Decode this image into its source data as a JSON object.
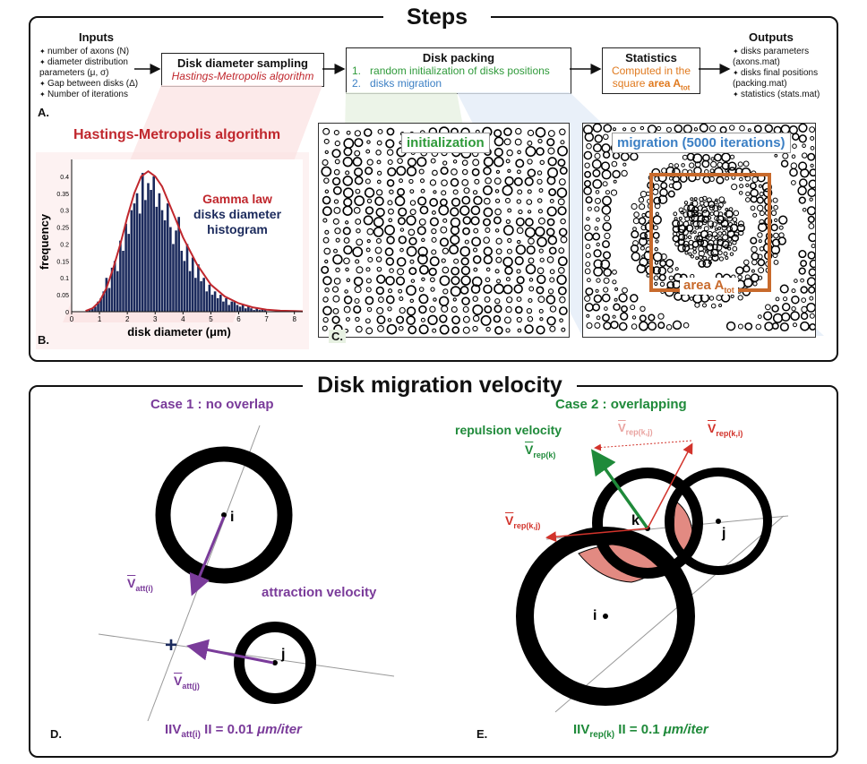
{
  "steps": {
    "title": "Steps",
    "inputs": {
      "title": "Inputs",
      "items": [
        "number of axons (N)",
        "diameter distribution parameters (μ, σ)",
        "Gap between disks (Δ)",
        "Number of iterations"
      ]
    },
    "sampling_box": {
      "title": "Disk diameter sampling",
      "subtitle": "Hastings-Metropolis algorithm"
    },
    "packing_box": {
      "title": "Disk packing",
      "item1_num": "1.",
      "item1": "random initialization of disks positions",
      "item2_num": "2.",
      "item2": "disks migration"
    },
    "stats_box": {
      "title": "Statistics",
      "line1": "Computed in the",
      "line2_a": "square ",
      "line2_b": "area A",
      "line2_sub": "tot"
    },
    "outputs": {
      "title": "Outputs",
      "items": [
        "disks parameters (axons.mat)",
        "disks final positions (packing.mat)",
        "statistics (stats.mat)"
      ]
    },
    "label_a": "A.",
    "hm_title": "Hastings-Metropolis algorithm",
    "label_b": "B.",
    "label_c": "C.",
    "init_label": "initialization",
    "migration_label": "migration (5000 iterations)",
    "area_label": "area A",
    "area_sub": "tot"
  },
  "chart_data": {
    "type": "bar",
    "xlabel": "disk diameter (μm)",
    "ylabel": "frequency",
    "xlim": [
      0,
      8.3
    ],
    "ylim": [
      0,
      0.45
    ],
    "xticks": [
      "0",
      "1",
      "2",
      "3",
      "4",
      "5",
      "6",
      "7",
      "8"
    ],
    "yticks": [
      "0",
      "0.05",
      "0.1",
      "0.15",
      "0.2",
      "0.25",
      "0.3",
      "0.35",
      "0.4"
    ],
    "legend": [
      "Gamma law",
      "disks diameter",
      "histogram"
    ],
    "legend_colors": [
      "#c0272d",
      "#1b2a5c"
    ],
    "histogram": {
      "x": [
        0.55,
        0.65,
        0.75,
        0.85,
        0.95,
        1.05,
        1.15,
        1.25,
        1.35,
        1.45,
        1.55,
        1.65,
        1.75,
        1.85,
        1.95,
        2.05,
        2.15,
        2.25,
        2.35,
        2.45,
        2.55,
        2.65,
        2.75,
        2.85,
        2.95,
        3.05,
        3.15,
        3.25,
        3.35,
        3.45,
        3.55,
        3.65,
        3.75,
        3.85,
        3.95,
        4.05,
        4.15,
        4.25,
        4.35,
        4.45,
        4.55,
        4.65,
        4.75,
        4.85,
        4.95,
        5.05,
        5.15,
        5.25,
        5.35,
        5.45,
        5.55,
        5.65,
        5.75,
        5.85,
        5.95,
        6.05,
        6.15,
        6.25,
        6.35,
        6.45,
        6.55,
        6.65,
        6.75,
        6.85,
        6.95
      ],
      "values": [
        0.005,
        0.008,
        0.01,
        0.015,
        0.03,
        0.04,
        0.06,
        0.1,
        0.07,
        0.13,
        0.15,
        0.12,
        0.21,
        0.18,
        0.26,
        0.23,
        0.3,
        0.32,
        0.35,
        0.29,
        0.41,
        0.33,
        0.38,
        0.36,
        0.4,
        0.31,
        0.35,
        0.3,
        0.27,
        0.32,
        0.25,
        0.2,
        0.24,
        0.28,
        0.18,
        0.15,
        0.2,
        0.12,
        0.16,
        0.1,
        0.14,
        0.09,
        0.1,
        0.06,
        0.08,
        0.05,
        0.06,
        0.04,
        0.05,
        0.03,
        0.04,
        0.02,
        0.03,
        0.03,
        0.02,
        0.015,
        0.02,
        0.01,
        0.015,
        0.01,
        0.005,
        0.01,
        0.005,
        0.008,
        0.005
      ]
    },
    "gamma_curve": {
      "x": [
        0.5,
        0.75,
        1,
        1.25,
        1.5,
        1.75,
        2,
        2.25,
        2.5,
        2.75,
        3,
        3.25,
        3.5,
        3.75,
        4,
        4.5,
        5,
        5.5,
        6,
        6.5,
        7,
        7.5,
        8,
        8.3
      ],
      "y": [
        0.002,
        0.01,
        0.03,
        0.07,
        0.13,
        0.2,
        0.28,
        0.35,
        0.4,
        0.415,
        0.4,
        0.37,
        0.32,
        0.27,
        0.22,
        0.14,
        0.08,
        0.045,
        0.025,
        0.013,
        0.006,
        0.003,
        0.002,
        0.001
      ]
    }
  },
  "velocity": {
    "title": "Disk migration velocity",
    "case1": "Case 1 : no overlap",
    "case2": "Case 2 : overlapping",
    "attraction": "attraction velocity",
    "repulsion": "repulsion velocity",
    "v": "V",
    "att_i": "att(i)",
    "att_j": "att(j)",
    "rep_k": "rep(k)",
    "rep_kj": "rep(k,j)",
    "rep_ki": "rep(k,i)",
    "pt_i": "i",
    "pt_j": "j",
    "pt_k": "k",
    "plus": "+",
    "formula1_a": "IIV",
    "formula1_sub": "att(i)",
    "formula1_b": " II = 0.01 ",
    "formula1_c": "μm/iter",
    "formula2_a": "IIV",
    "formula2_sub": "rep(k)",
    "formula2_b": " II = 0.1 ",
    "formula2_c": "μm/iter",
    "label_d": "D.",
    "label_e": "E."
  }
}
